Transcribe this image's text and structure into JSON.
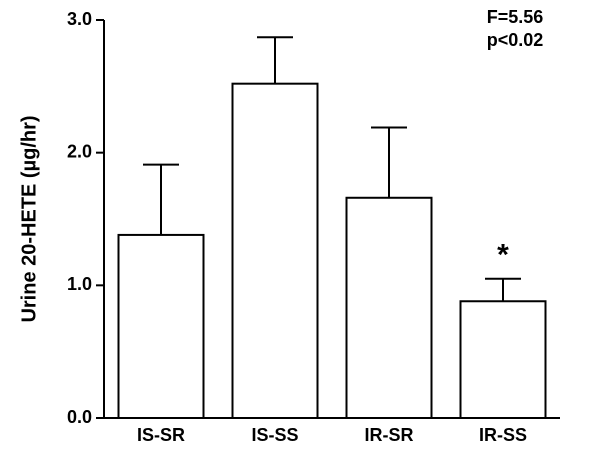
{
  "chart_data": {
    "type": "bar",
    "ylabel": "Urine 20-HETE (µg/hr)",
    "categories": [
      "IS-SR",
      "IS-SS",
      "IR-SR",
      "IR-SS"
    ],
    "values": [
      1.38,
      2.52,
      1.66,
      0.88
    ],
    "errors": [
      0.53,
      0.35,
      0.53,
      0.17
    ],
    "color": "#ffffff",
    "ylim": [
      0,
      3.0
    ],
    "yticks": [
      {
        "value": 0,
        "label": "0.0"
      },
      {
        "value": 1,
        "label": "1.0"
      },
      {
        "value": 2,
        "label": "2.0"
      },
      {
        "value": 3,
        "label": "3.0"
      }
    ],
    "annotations": [
      "F=5.56",
      "p<0.02",
      "*"
    ]
  }
}
